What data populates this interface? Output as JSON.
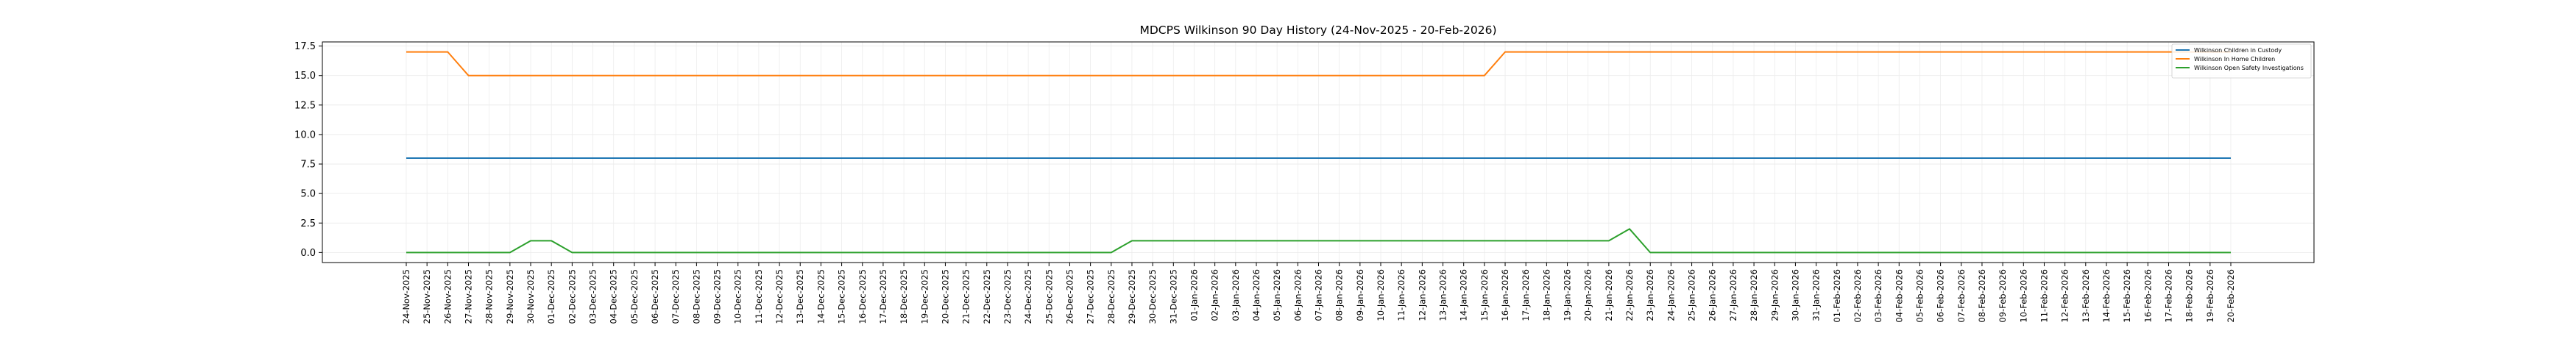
{
  "chart_data": {
    "type": "line",
    "title": "MDCPS Wilkinson 90 Day History (24-Nov-2025 - 20-Feb-2026)",
    "xlabel": "",
    "ylabel": "",
    "ylim": [
      -0.85,
      17.85
    ],
    "y_ticks": [
      "0.0",
      "2.5",
      "5.0",
      "7.5",
      "10.0",
      "12.5",
      "15.0",
      "17.5"
    ],
    "grid": true,
    "legend_position": "top-right",
    "x": [
      "24-Nov-2025",
      "25-Nov-2025",
      "26-Nov-2025",
      "27-Nov-2025",
      "28-Nov-2025",
      "29-Nov-2025",
      "30-Nov-2025",
      "01-Dec-2025",
      "02-Dec-2025",
      "03-Dec-2025",
      "04-Dec-2025",
      "05-Dec-2025",
      "06-Dec-2025",
      "07-Dec-2025",
      "08-Dec-2025",
      "09-Dec-2025",
      "10-Dec-2025",
      "11-Dec-2025",
      "12-Dec-2025",
      "13-Dec-2025",
      "14-Dec-2025",
      "15-Dec-2025",
      "16-Dec-2025",
      "17-Dec-2025",
      "18-Dec-2025",
      "19-Dec-2025",
      "20-Dec-2025",
      "21-Dec-2025",
      "22-Dec-2025",
      "23-Dec-2025",
      "24-Dec-2025",
      "25-Dec-2025",
      "26-Dec-2025",
      "27-Dec-2025",
      "28-Dec-2025",
      "29-Dec-2025",
      "30-Dec-2025",
      "31-Dec-2025",
      "01-Jan-2026",
      "02-Jan-2026",
      "03-Jan-2026",
      "04-Jan-2026",
      "05-Jan-2026",
      "06-Jan-2026",
      "07-Jan-2026",
      "08-Jan-2026",
      "09-Jan-2026",
      "10-Jan-2026",
      "11-Jan-2026",
      "12-Jan-2026",
      "13-Jan-2026",
      "14-Jan-2026",
      "15-Jan-2026",
      "16-Jan-2026",
      "17-Jan-2026",
      "18-Jan-2026",
      "19-Jan-2026",
      "20-Jan-2026",
      "21-Jan-2026",
      "22-Jan-2026",
      "23-Jan-2026",
      "24-Jan-2026",
      "25-Jan-2026",
      "26-Jan-2026",
      "27-Jan-2026",
      "28-Jan-2026",
      "29-Jan-2026",
      "30-Jan-2026",
      "31-Jan-2026",
      "01-Feb-2026",
      "02-Feb-2026",
      "03-Feb-2026",
      "04-Feb-2026",
      "05-Feb-2026",
      "06-Feb-2026",
      "07-Feb-2026",
      "08-Feb-2026",
      "09-Feb-2026",
      "10-Feb-2026",
      "11-Feb-2026",
      "12-Feb-2026",
      "13-Feb-2026",
      "14-Feb-2026",
      "15-Feb-2026",
      "16-Feb-2026",
      "17-Feb-2026",
      "18-Feb-2026",
      "19-Feb-2026",
      "20-Feb-2026"
    ],
    "series": [
      {
        "name": "Wilkinson Children in Custody",
        "color": "#1f77b4",
        "values": [
          8,
          8,
          8,
          8,
          8,
          8,
          8,
          8,
          8,
          8,
          8,
          8,
          8,
          8,
          8,
          8,
          8,
          8,
          8,
          8,
          8,
          8,
          8,
          8,
          8,
          8,
          8,
          8,
          8,
          8,
          8,
          8,
          8,
          8,
          8,
          8,
          8,
          8,
          8,
          8,
          8,
          8,
          8,
          8,
          8,
          8,
          8,
          8,
          8,
          8,
          8,
          8,
          8,
          8,
          8,
          8,
          8,
          8,
          8,
          8,
          8,
          8,
          8,
          8,
          8,
          8,
          8,
          8,
          8,
          8,
          8,
          8,
          8,
          8,
          8,
          8,
          8,
          8,
          8,
          8,
          8,
          8,
          8,
          8,
          8,
          8,
          8,
          8,
          8
        ]
      },
      {
        "name": "Wilkinson In Home Children",
        "color": "#ff7f0e",
        "values": [
          17,
          17,
          17,
          15,
          15,
          15,
          15,
          15,
          15,
          15,
          15,
          15,
          15,
          15,
          15,
          15,
          15,
          15,
          15,
          15,
          15,
          15,
          15,
          15,
          15,
          15,
          15,
          15,
          15,
          15,
          15,
          15,
          15,
          15,
          15,
          15,
          15,
          15,
          15,
          15,
          15,
          15,
          15,
          15,
          15,
          15,
          15,
          15,
          15,
          15,
          15,
          15,
          15,
          17,
          17,
          17,
          17,
          17,
          17,
          17,
          17,
          17,
          17,
          17,
          17,
          17,
          17,
          17,
          17,
          17,
          17,
          17,
          17,
          17,
          17,
          17,
          17,
          17,
          17,
          17,
          17,
          17,
          17,
          17,
          17,
          17,
          17,
          17,
          17
        ]
      },
      {
        "name": "Wilkinson Open Safety Investigations",
        "color": "#2ca02c",
        "values": [
          0,
          0,
          0,
          0,
          0,
          0,
          1,
          1,
          0,
          0,
          0,
          0,
          0,
          0,
          0,
          0,
          0,
          0,
          0,
          0,
          0,
          0,
          0,
          0,
          0,
          0,
          0,
          0,
          0,
          0,
          0,
          0,
          0,
          0,
          0,
          1,
          1,
          1,
          1,
          1,
          1,
          1,
          1,
          1,
          1,
          1,
          1,
          1,
          1,
          1,
          1,
          1,
          1,
          1,
          1,
          1,
          1,
          1,
          1,
          2,
          0,
          0,
          0,
          0,
          0,
          0,
          0,
          0,
          0,
          0,
          0,
          0,
          0,
          0,
          0,
          0,
          0,
          0,
          0,
          0,
          0,
          0,
          0,
          0,
          0,
          0,
          0,
          0,
          0
        ]
      }
    ]
  }
}
